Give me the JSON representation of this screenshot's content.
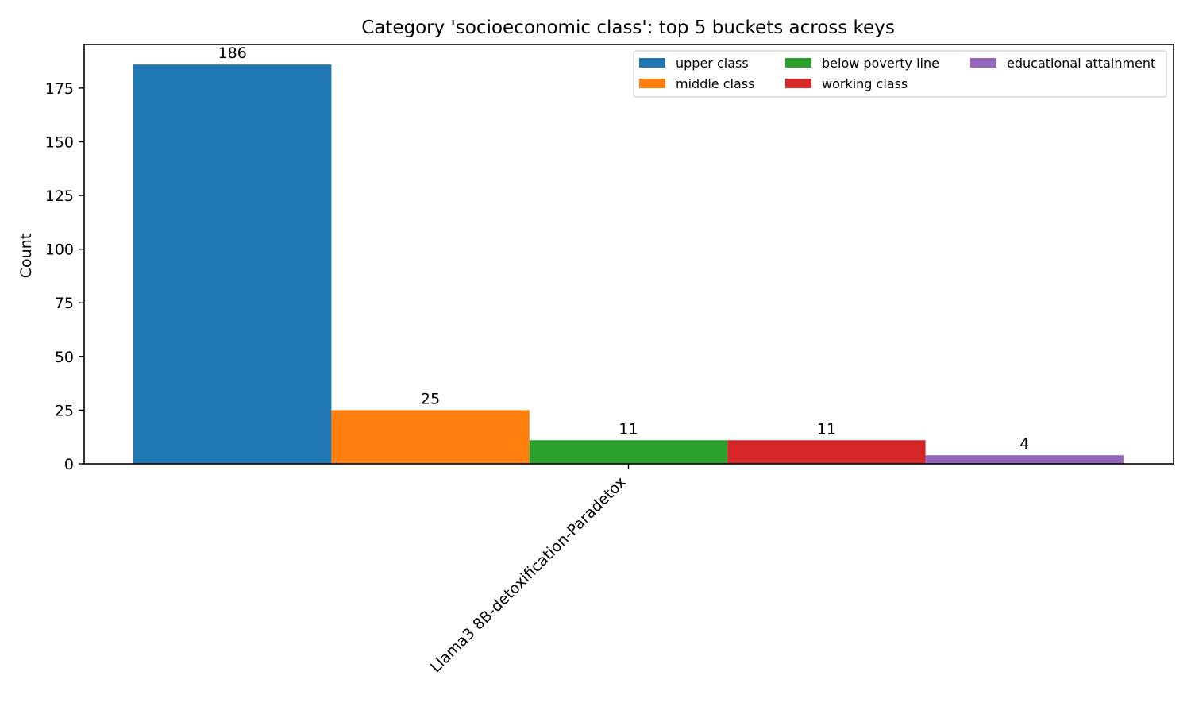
{
  "chart_data": {
    "type": "bar",
    "title": "Category 'socioeconomic class': top 5 buckets across keys",
    "xlabel": "",
    "ylabel": "Count",
    "categories": [
      "Llama3 8B-detoxification-Paradetox"
    ],
    "series": [
      {
        "name": "upper class",
        "values": [
          186
        ],
        "color": "#1f77b4"
      },
      {
        "name": "middle class",
        "values": [
          25
        ],
        "color": "#ff7f0e"
      },
      {
        "name": "below poverty line",
        "values": [
          11
        ],
        "color": "#2ca02c"
      },
      {
        "name": "working class",
        "values": [
          11
        ],
        "color": "#d62728"
      },
      {
        "name": "educational attainment",
        "values": [
          4
        ],
        "color": "#9467bd"
      }
    ],
    "ylim": [
      0,
      195.3
    ],
    "yticks": [
      0,
      25,
      50,
      75,
      100,
      125,
      150,
      175
    ],
    "grid": false,
    "legend_position": "top-right",
    "legend_columns": 3
  }
}
